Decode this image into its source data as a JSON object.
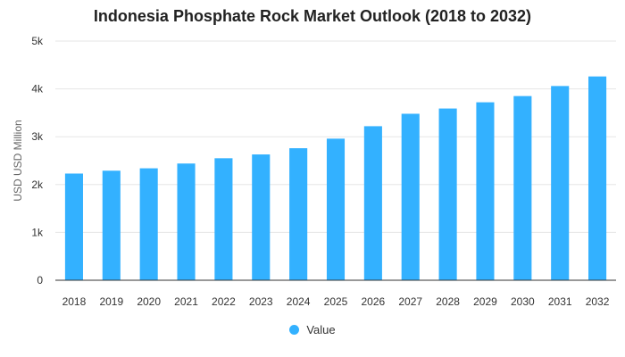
{
  "chart_data": {
    "type": "bar",
    "title": "Indonesia Phosphate Rock Market Outlook (2018 to 2032)",
    "xlabel": "",
    "ylabel": "USD USD Million",
    "categories": [
      "2018",
      "2019",
      "2020",
      "2021",
      "2022",
      "2023",
      "2024",
      "2025",
      "2026",
      "2027",
      "2028",
      "2029",
      "2030",
      "2031",
      "2032"
    ],
    "series": [
      {
        "name": "Value",
        "values": [
          2230,
          2290,
          2340,
          2440,
          2550,
          2630,
          2760,
          2960,
          3220,
          3480,
          3590,
          3720,
          3850,
          4060,
          4260
        ]
      }
    ],
    "ylim": [
      0,
      5000
    ],
    "yticks": [
      "0",
      "1k",
      "2k",
      "3k",
      "4k",
      "5k"
    ],
    "grid": true,
    "legend": "bottom-center",
    "colors": {
      "bar": "#33B1FF",
      "grid": "#e6e6e6",
      "axis": "#333333"
    }
  }
}
